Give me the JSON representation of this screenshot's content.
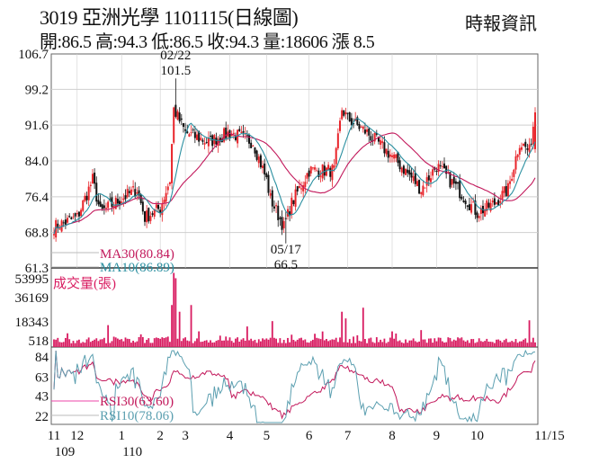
{
  "header": {
    "title": "3019  亞洲光學 1101115(日線圖)",
    "source": "時報資訊",
    "quote": "開:86.5 高:94.3 低:86.5 收:94.3 量:18606 漲 8.5"
  },
  "chart_data": {
    "type": "candlestick",
    "price_axis": {
      "ticks": [
        "106.7",
        "99.2",
        "91.6",
        "84.0",
        "76.4",
        "68.8",
        "61.3"
      ],
      "ylim": [
        61.3,
        106.7
      ]
    },
    "volume_axis": {
      "label": "成交量(張)",
      "ticks": [
        "53995",
        "36169",
        "18343",
        "518"
      ],
      "ylim": [
        0,
        55000
      ]
    },
    "rsi_axis": {
      "ticks": [
        "84",
        "63",
        "43",
        "22"
      ],
      "ylim": [
        15,
        90
      ]
    },
    "x_ticks": [
      {
        "label": "11",
        "day": 0
      },
      {
        "label": "12",
        "day": 12
      },
      {
        "label": "1",
        "day": 35
      },
      {
        "label": "2",
        "day": 55
      },
      {
        "label": "3",
        "day": 68
      },
      {
        "label": "4",
        "day": 91
      },
      {
        "label": "5",
        "day": 110
      },
      {
        "label": "6",
        "day": 132
      },
      {
        "label": "7",
        "day": 152
      },
      {
        "label": "8",
        "day": 175
      },
      {
        "label": "9",
        "day": 198
      },
      {
        "label": "10",
        "day": 219
      },
      {
        "label": "11/15",
        "day": 249
      }
    ],
    "year_labels": [
      {
        "label": "109",
        "day": 0
      },
      {
        "label": "110",
        "day": 35
      }
    ],
    "annotations": [
      {
        "date": "02/22",
        "value": "101.5",
        "day": 63
      },
      {
        "date": "05/17",
        "value": "66.5",
        "day": 120
      }
    ],
    "legend": {
      "ma30": "MA30(80.84)",
      "ma10": "MA10(86.89)",
      "rsi30": "RSI30(63.60)",
      "rsi10": "RSI10(78.06)"
    },
    "close_waypoints": [
      [
        0,
        70
      ],
      [
        12,
        72
      ],
      [
        20,
        80
      ],
      [
        24,
        73
      ],
      [
        35,
        76
      ],
      [
        43,
        78
      ],
      [
        47,
        72
      ],
      [
        55,
        74
      ],
      [
        60,
        80
      ],
      [
        62,
        95
      ],
      [
        68,
        90
      ],
      [
        80,
        88
      ],
      [
        91,
        90
      ],
      [
        103,
        88
      ],
      [
        110,
        80
      ],
      [
        112,
        76
      ],
      [
        119,
        70
      ],
      [
        123,
        75
      ],
      [
        132,
        82
      ],
      [
        145,
        82
      ],
      [
        149,
        95
      ],
      [
        152,
        93
      ],
      [
        162,
        90
      ],
      [
        175,
        85
      ],
      [
        186,
        80
      ],
      [
        190,
        78
      ],
      [
        198,
        83
      ],
      [
        209,
        78
      ],
      [
        219,
        73
      ],
      [
        228,
        75
      ],
      [
        235,
        78
      ],
      [
        241,
        88
      ],
      [
        246,
        86
      ],
      [
        249,
        94.3
      ]
    ],
    "volume_spikes": [
      [
        62,
        53995
      ],
      [
        63,
        50000
      ],
      [
        61,
        30000
      ],
      [
        65,
        25000
      ],
      [
        71,
        30000
      ],
      [
        149,
        25000
      ],
      [
        151,
        20000
      ],
      [
        160,
        28000
      ],
      [
        246,
        18606
      ],
      [
        28,
        15000
      ],
      [
        113,
        18000
      ],
      [
        100,
        14000
      ]
    ],
    "colors": {
      "up": "#e8242a",
      "down": "#111111",
      "ma30": "#c2185b",
      "ma10": "#2a8fa0",
      "volume": "#d81b60",
      "rsi30": "#c2185b",
      "rsi10": "#5b9fb0",
      "grid": "#cfcfcf"
    }
  }
}
